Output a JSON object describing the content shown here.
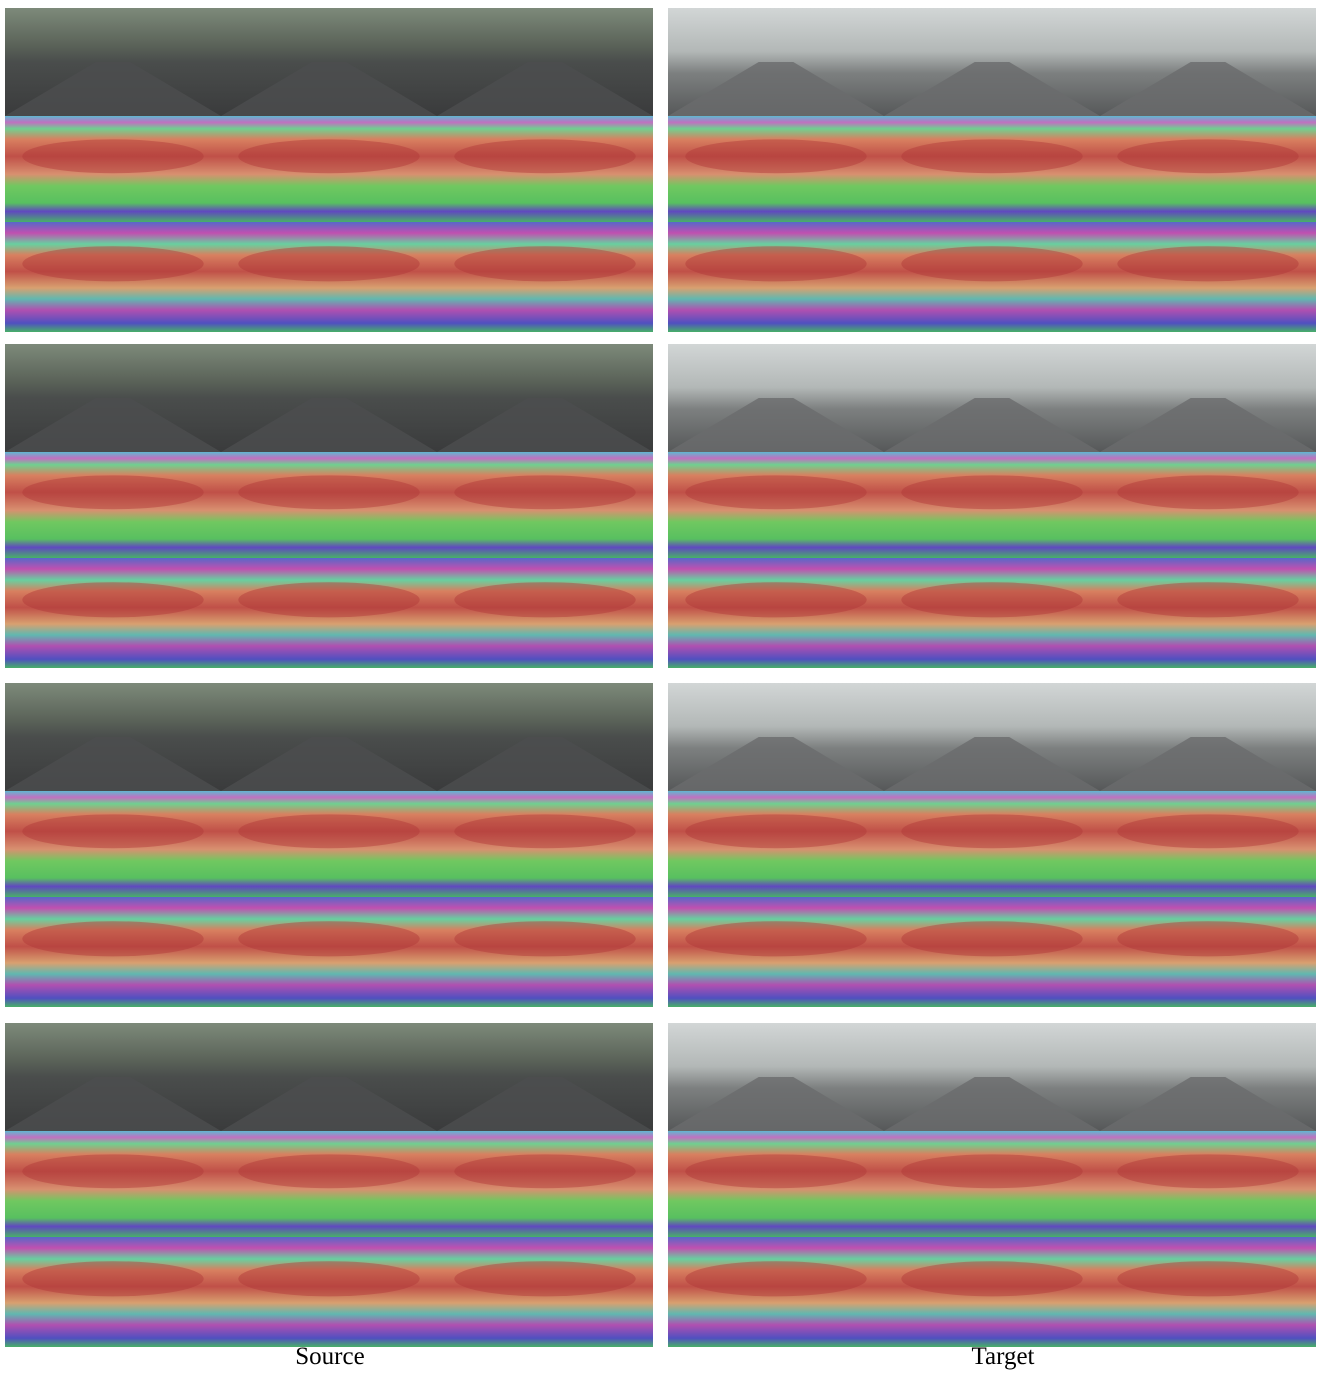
{
  "captions": {
    "source": "Source",
    "target": "Target"
  }
}
